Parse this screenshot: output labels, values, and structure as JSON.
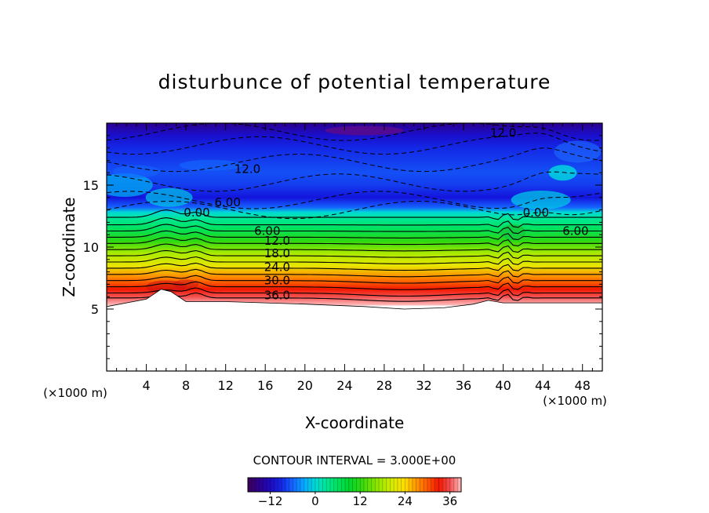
{
  "chart_data": {
    "type": "heatmap",
    "title": "disturbunce of potential temperature",
    "xlabel": "X-coordinate",
    "ylabel": "Z-coordinate",
    "x_unit_left": "(×1000 m)",
    "x_unit_right": "(×1000 m)",
    "xlim": [
      0,
      50
    ],
    "ylim": [
      0,
      20
    ],
    "x_ticks": [
      4,
      8,
      12,
      16,
      20,
      24,
      28,
      32,
      36,
      40,
      44,
      48
    ],
    "y_ticks": [
      5,
      10,
      15
    ],
    "contour_interval_text": "CONTOUR INTERVAL = 3.000E+00",
    "contour_interval": 3.0,
    "colorbar": {
      "range": [
        -18,
        39
      ],
      "ticks": [
        -12,
        0,
        12,
        24,
        36
      ],
      "tick_labels": [
        "−12",
        "0",
        "12",
        "24",
        "36"
      ]
    },
    "contour_labels": [
      {
        "text": "12.0",
        "x": 40.0,
        "z": 19.2
      },
      {
        "text": "12.0",
        "x": 14.2,
        "z": 16.3
      },
      {
        "text": "6.00",
        "x": 12.2,
        "z": 13.6
      },
      {
        "text": "0.00",
        "x": 9.1,
        "z": 12.8
      },
      {
        "text": "0.00",
        "x": 43.3,
        "z": 12.8
      },
      {
        "text": "6.00",
        "x": 47.3,
        "z": 11.3
      },
      {
        "text": "6.00",
        "x": 16.2,
        "z": 11.3
      },
      {
        "text": "12.0",
        "x": 17.2,
        "z": 10.5
      },
      {
        "text": "18.0",
        "x": 17.2,
        "z": 9.5
      },
      {
        "text": "24.0",
        "x": 17.2,
        "z": 8.4
      },
      {
        "text": "30.0",
        "x": 17.2,
        "z": 7.3
      },
      {
        "text": "36.0",
        "x": 17.2,
        "z": 6.1
      }
    ],
    "terrain_height": [
      [
        0,
        5.2
      ],
      [
        4,
        5.8
      ],
      [
        5.5,
        6.6
      ],
      [
        6.5,
        6.4
      ],
      [
        8,
        5.6
      ],
      [
        12,
        5.6
      ],
      [
        16,
        5.5
      ],
      [
        20,
        5.4
      ],
      [
        26,
        5.2
      ],
      [
        30,
        5.0
      ],
      [
        34,
        5.1
      ],
      [
        37,
        5.4
      ],
      [
        38.5,
        5.7
      ],
      [
        40,
        5.5
      ],
      [
        44,
        5.5
      ],
      [
        48,
        5.5
      ],
      [
        50,
        5.5
      ]
    ],
    "vertical_structure": [
      [
        20,
        -15
      ],
      [
        19,
        -11
      ],
      [
        18,
        -9
      ],
      [
        16,
        -7
      ],
      [
        15,
        -8
      ],
      [
        14,
        -10
      ],
      [
        13.2,
        -6
      ],
      [
        12.8,
        0
      ],
      [
        12.3,
        3
      ],
      [
        11.5,
        6
      ],
      [
        10.5,
        12
      ],
      [
        9.5,
        18
      ],
      [
        8.5,
        22
      ],
      [
        7.5,
        28
      ],
      [
        6.6,
        33
      ],
      [
        6.0,
        36
      ],
      [
        5.3,
        39
      ]
    ]
  }
}
